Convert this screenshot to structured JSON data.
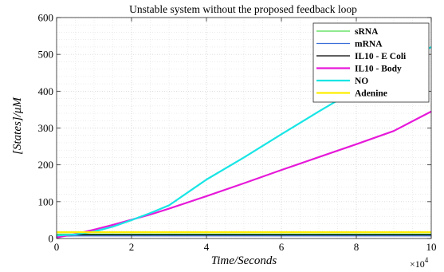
{
  "chart_data": {
    "type": "line",
    "title": "Unstable system without the proposed feedback loop",
    "xlabel": "Time/Seconds",
    "ylabel": "[States]/μM",
    "x_multiplier_label": "×10",
    "x_multiplier_exponent": "4",
    "xlim": [
      0,
      10
    ],
    "ylim": [
      0,
      600
    ],
    "xticks": [
      0,
      2,
      4,
      6,
      8,
      10
    ],
    "yticks": [
      0,
      100,
      200,
      300,
      400,
      500,
      600
    ],
    "xtick_labels": [
      "0",
      "2",
      "4",
      "6",
      "8",
      "10"
    ],
    "ytick_labels": [
      "0",
      "100",
      "200",
      "300",
      "400",
      "500",
      "600"
    ],
    "grid": true,
    "minor_grid": true,
    "legend_position": "top-right",
    "series": [
      {
        "name": "sRNA",
        "color": "#4ddd4d",
        "x": [
          0,
          0.5,
          1,
          2,
          4,
          6,
          8,
          10
        ],
        "y": [
          12,
          12,
          12,
          12,
          12,
          12,
          12,
          12
        ]
      },
      {
        "name": "mRNA",
        "color": "#3a6fd8",
        "x": [
          0,
          0.5,
          1,
          2,
          4,
          6,
          8,
          10
        ],
        "y": [
          6,
          7,
          7,
          7,
          7,
          7,
          7,
          7
        ]
      },
      {
        "name": "IL10 - E Coli",
        "color": "#000000",
        "x": [
          0,
          0.5,
          1,
          2,
          4,
          6,
          8,
          10
        ],
        "y": [
          9,
          10,
          10,
          10,
          10,
          10,
          10,
          10
        ]
      },
      {
        "name": "IL10 - Body",
        "color": "#e619d9",
        "x": [
          0,
          0.5,
          1,
          1.5,
          2,
          2.5,
          3,
          4,
          5,
          6,
          7,
          8,
          9,
          10
        ],
        "y": [
          3,
          12,
          24,
          37,
          51,
          65,
          81,
          115,
          150,
          186,
          221,
          256,
          292,
          345
        ]
      },
      {
        "name": "NO",
        "color": "#19e5e5",
        "x": [
          0,
          0.5,
          1,
          1.5,
          2,
          2.5,
          3,
          4,
          5,
          6,
          7,
          8,
          9,
          10
        ],
        "y": [
          8,
          11,
          19,
          32,
          50,
          69,
          90,
          160,
          220,
          283,
          345,
          405,
          465,
          520
        ]
      },
      {
        "name": "Adenine",
        "color": "#ffee00",
        "x": [
          0,
          10
        ],
        "y": [
          17,
          17
        ]
      }
    ]
  }
}
